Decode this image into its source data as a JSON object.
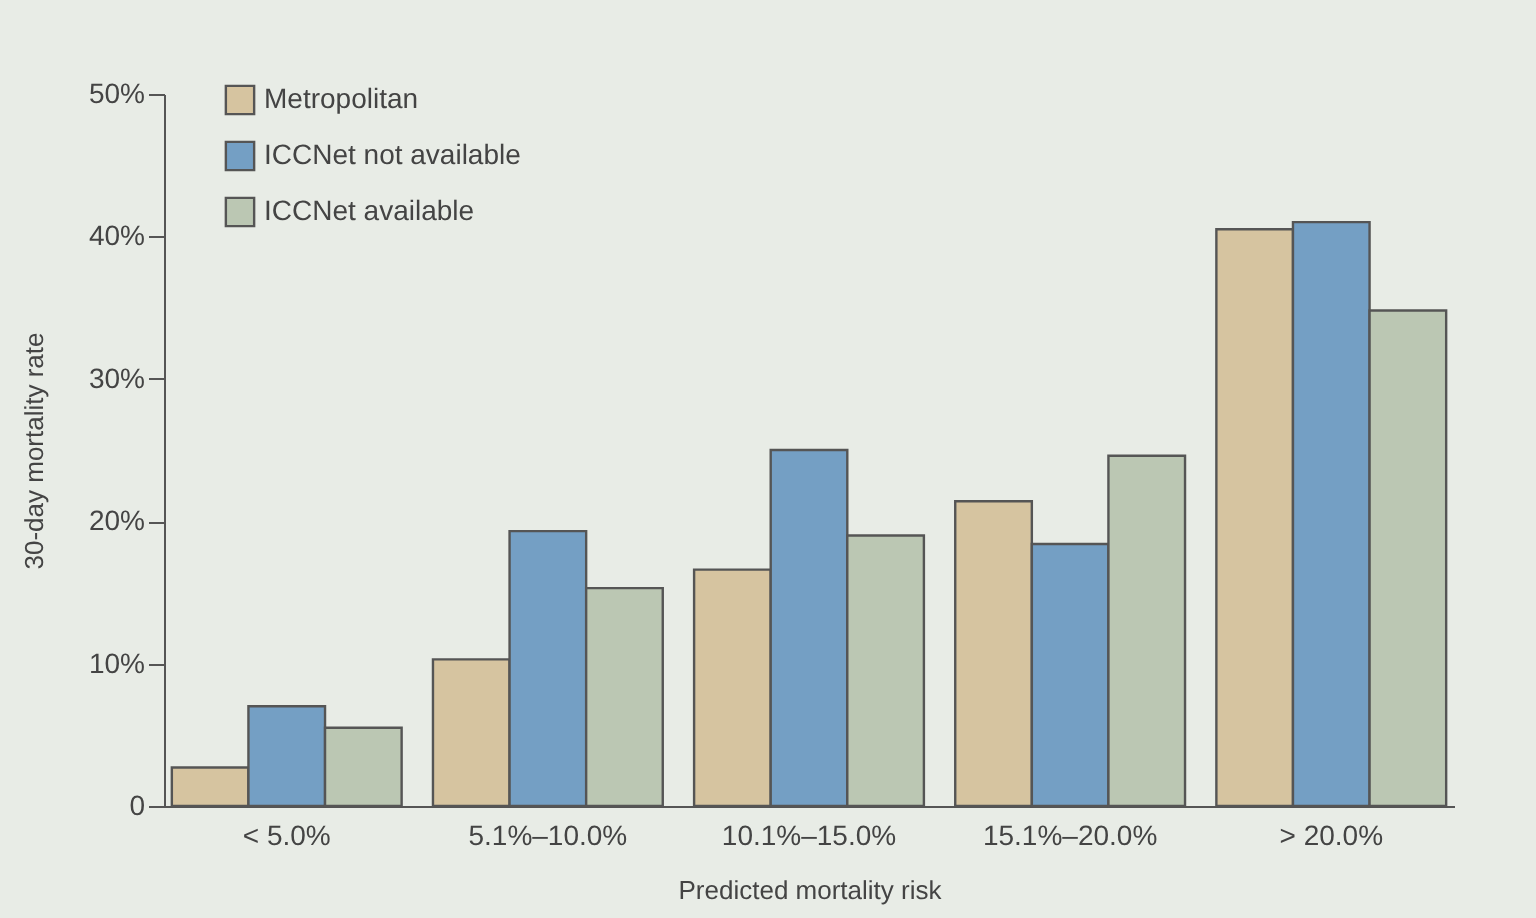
{
  "chart_data": {
    "type": "bar",
    "xlabel": "Predicted mortality risk",
    "ylabel": "30-day mortality rate",
    "categories": [
      "< 5.0%",
      "5.1%–10.0%",
      "10.1%–15.0%",
      "15.1%–20.0%",
      "> 20.0%"
    ],
    "series": [
      {
        "name": "Metropolitan",
        "color": "#d6c4a0",
        "values": [
          2.7,
          10.3,
          16.6,
          21.4,
          40.5
        ]
      },
      {
        "name": "ICCNet not available",
        "color": "#749fc4",
        "values": [
          7.0,
          19.3,
          25.0,
          18.4,
          41.0
        ]
      },
      {
        "name": "ICCNet available",
        "color": "#bbc7b3",
        "values": [
          5.5,
          15.3,
          19.0,
          24.6,
          34.8
        ]
      }
    ],
    "ylim": [
      0,
      50
    ],
    "yticks": [
      {
        "value": 0,
        "label": "0"
      },
      {
        "value": 10,
        "label": "10%"
      },
      {
        "value": 20,
        "label": "20%"
      },
      {
        "value": 30,
        "label": "30%"
      },
      {
        "value": 40,
        "label": "40%"
      },
      {
        "value": 50,
        "label": "50%"
      }
    ],
    "grid": false,
    "legend": "top left"
  }
}
